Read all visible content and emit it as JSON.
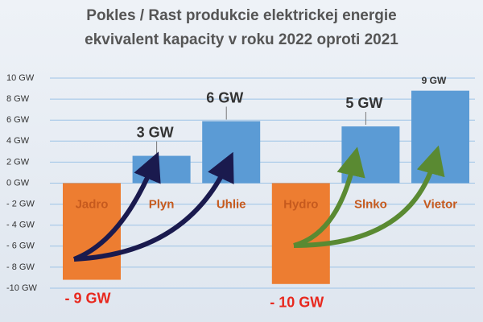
{
  "chart_data": {
    "type": "bar",
    "title": "Pokles / Rast produkcie elektrickej energie",
    "subtitle": "ekvivalent kapacity v roku 2022 oproti 2021",
    "categories": [
      "Jadro",
      "Plyn",
      "Uhlie",
      "Hydro",
      "Slnko",
      "Vietor"
    ],
    "values": [
      -9.2,
      2.6,
      5.9,
      -9.6,
      5.4,
      8.8
    ],
    "value_labels": [
      "- 9 GW",
      "3 GW",
      "6 GW",
      "- 10 GW",
      "5 GW",
      "9 GW"
    ],
    "colors": [
      "#ed7d31",
      "#5b9bd5",
      "#5b9bd5",
      "#ed7d31",
      "#5b9bd5",
      "#5b9bd5"
    ],
    "ylim": [
      -10,
      10
    ],
    "yticks": [
      {
        "value": 10,
        "label": "10 GW"
      },
      {
        "value": 8,
        "label": "8 GW"
      },
      {
        "value": 6,
        "label": "6 GW"
      },
      {
        "value": 4,
        "label": "4 GW"
      },
      {
        "value": 2,
        "label": "2 GW"
      },
      {
        "value": 0,
        "label": "0 GW"
      },
      {
        "value": -2,
        "label": "- 2 GW"
      },
      {
        "value": -4,
        "label": "- 4 GW"
      },
      {
        "value": -6,
        "label": "- 6 GW"
      },
      {
        "value": -8,
        "label": "- 8 GW"
      },
      {
        "value": -10,
        "label": "-10 GW"
      }
    ],
    "grid": true
  }
}
